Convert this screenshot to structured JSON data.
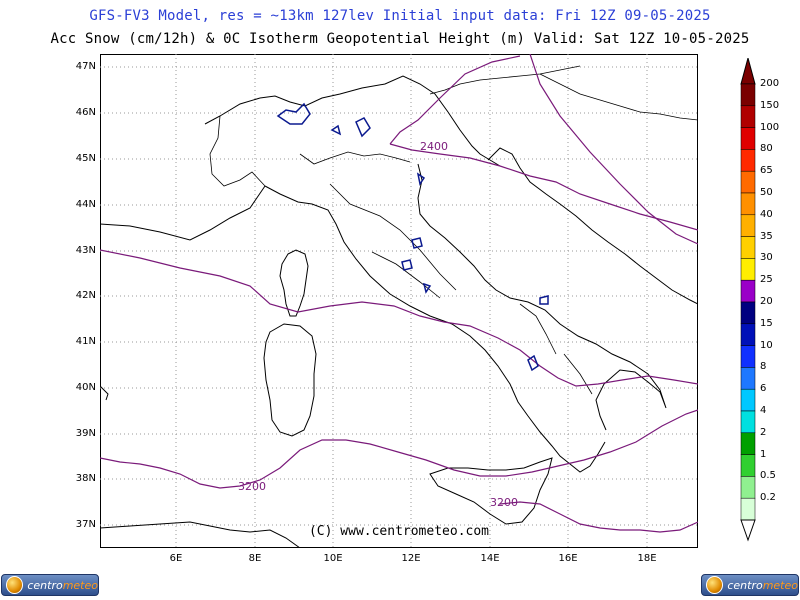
{
  "header": {
    "line1": "GFS-FV3 Model, res = ~13km 127lev   Initial input data: Fri 12Z 09-05-2025",
    "line2": "Acc Snow (cm/12h) & 0C Isotherm Geopotential Height (m)  Valid: Sat 12Z 10-05-2025"
  },
  "map": {
    "lat_labels": [
      "47N",
      "46N",
      "45N",
      "44N",
      "43N",
      "42N",
      "41N",
      "40N",
      "39N",
      "38N",
      "37N"
    ],
    "lon_labels": [
      "6E",
      "8E",
      "10E",
      "12E",
      "14E",
      "16E",
      "18E"
    ],
    "contour_labels": [
      "2400",
      "3200",
      "3200"
    ],
    "copyright": "(C) www.centrometeo.com",
    "land_color": "#ffffff",
    "contour_color": "#7a1a7a",
    "snow_color": "#0b1a8f"
  },
  "legend": {
    "labels": [
      "200",
      "150",
      "100",
      "80",
      "65",
      "50",
      "40",
      "35",
      "30",
      "25",
      "20",
      "15",
      "10",
      "8",
      "6",
      "4",
      "2",
      "1",
      "0.5",
      "0.2"
    ],
    "colors": [
      "#7a0000",
      "#b00000",
      "#e00000",
      "#ff2a00",
      "#ff6a00",
      "#ff9000",
      "#ffb000",
      "#ffd000",
      "#ffee00",
      "#9a00c8",
      "#000080",
      "#0010b8",
      "#1030ff",
      "#1e78ff",
      "#00c8ff",
      "#00e0e0",
      "#00a000",
      "#30d030",
      "#90f090",
      "#d8ffd8"
    ]
  },
  "logos": {
    "left": "centrometeo",
    "right": "centrometeo"
  }
}
